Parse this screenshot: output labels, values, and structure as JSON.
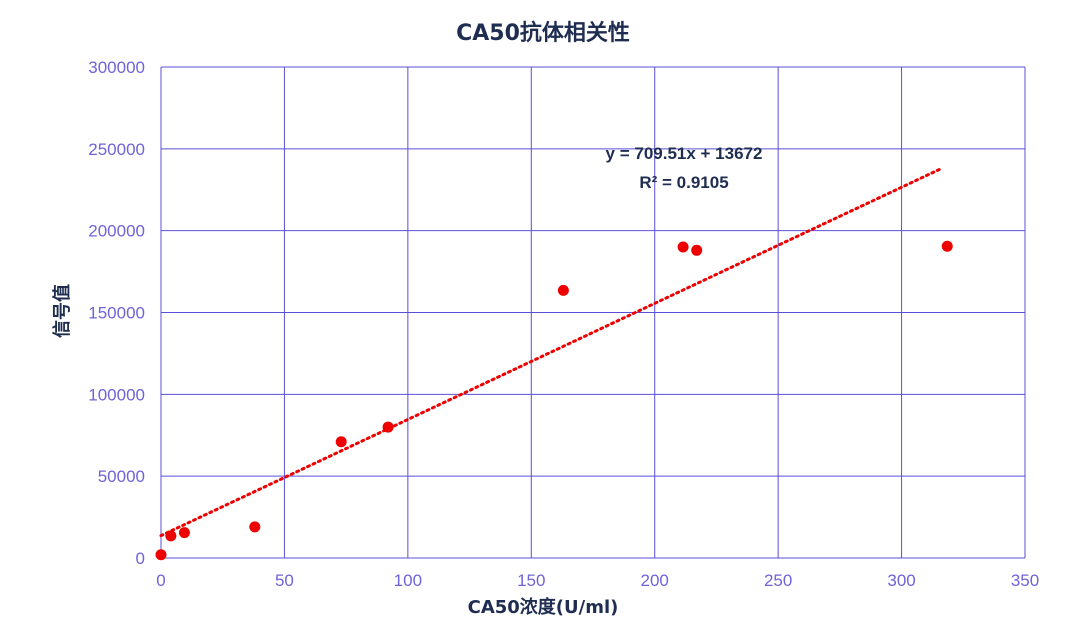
{
  "chart_data": {
    "type": "scatter",
    "title": "CA50抗体相关性",
    "xlabel": "CA50浓度(U/ml)",
    "ylabel": "信号值",
    "xlim": [
      0,
      350
    ],
    "ylim": [
      0,
      300000
    ],
    "x_ticks": [
      0,
      50,
      100,
      150,
      200,
      250,
      300,
      350
    ],
    "y_ticks": [
      0,
      50000,
      100000,
      150000,
      200000,
      250000,
      300000
    ],
    "grid": true,
    "points": [
      {
        "x": 0,
        "y": 2000
      },
      {
        "x": 4,
        "y": 13500
      },
      {
        "x": 9.5,
        "y": 15500
      },
      {
        "x": 38,
        "y": 19000
      },
      {
        "x": 73,
        "y": 71000
      },
      {
        "x": 92,
        "y": 80000
      },
      {
        "x": 163,
        "y": 163500
      },
      {
        "x": 211.5,
        "y": 190000
      },
      {
        "x": 217,
        "y": 188000
      },
      {
        "x": 318.5,
        "y": 190500
      }
    ],
    "trendline": {
      "type": "linear",
      "slope": 709.51,
      "intercept": 13672,
      "x_range": [
        0,
        316
      ],
      "equation_label": "y = 709.51x + 13672",
      "r2_label": "R² = 0.9105"
    },
    "colors": {
      "points": "#ee0000",
      "trendline": "#ee0000",
      "grid": "#5b4fd9",
      "ticks": "#6f63d8",
      "text": "#1f2d50"
    }
  }
}
